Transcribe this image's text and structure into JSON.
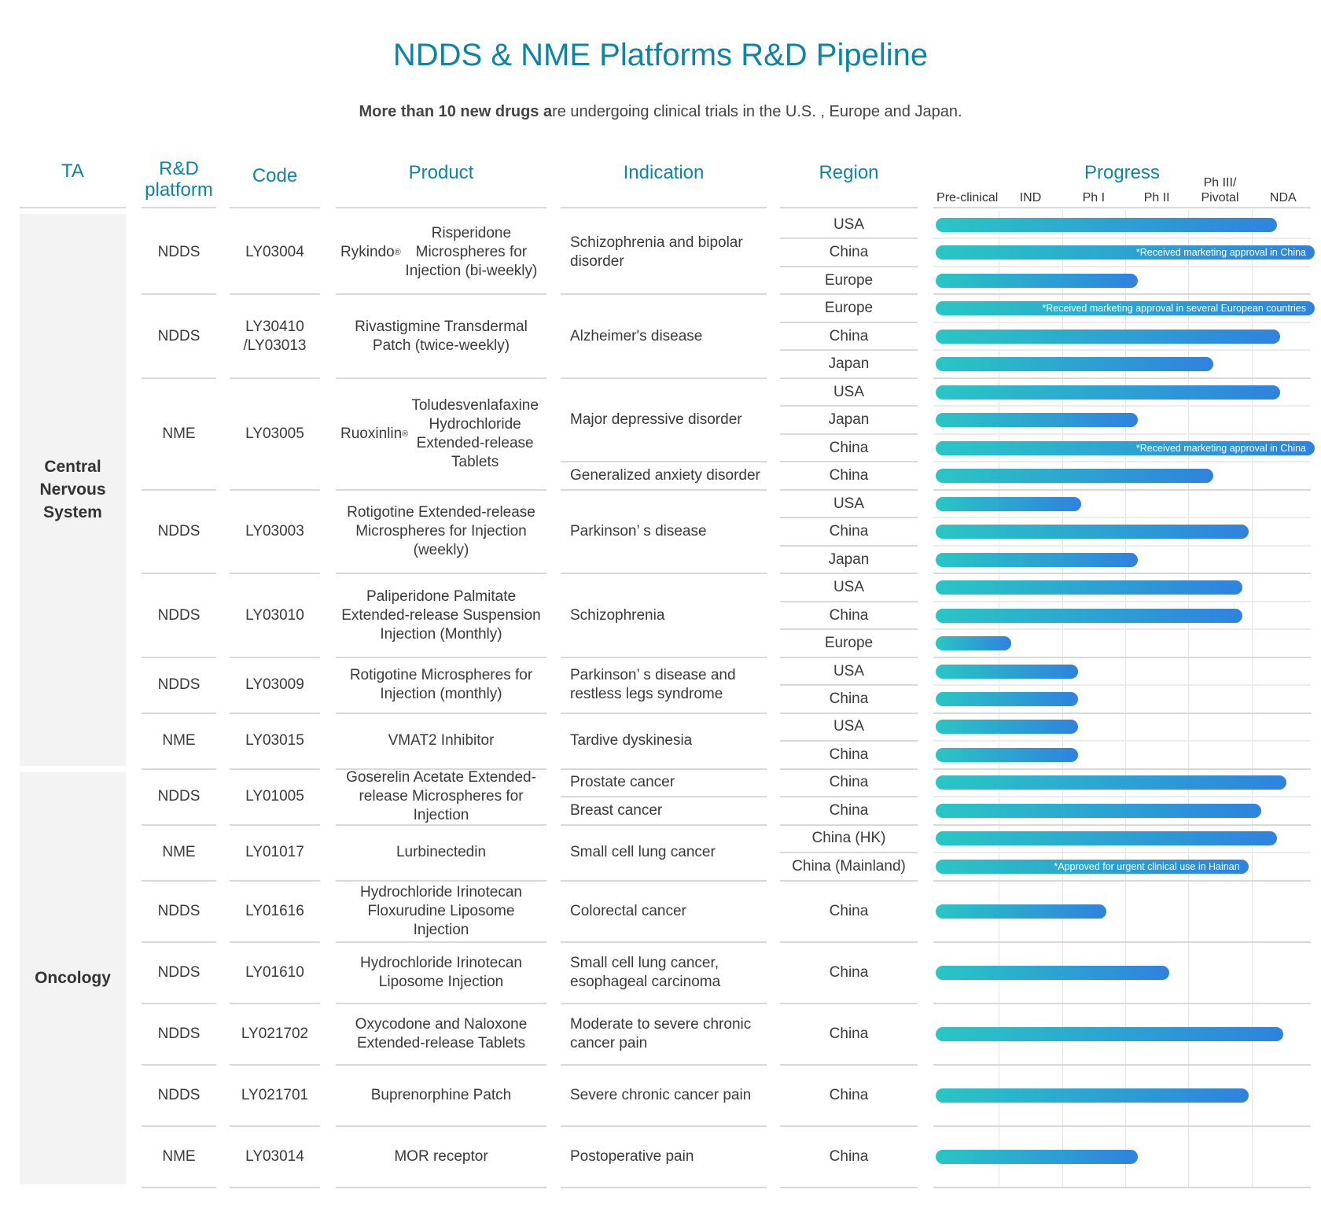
{
  "title": "NDDS & NME Platforms R&D Pipeline",
  "subtitle": {
    "bold": "More than 10 new drugs a",
    "rest": "re undergoing clinical trials in the U.S. , Europe and Japan."
  },
  "headers": {
    "ta": "TA",
    "platform": "R&D platform",
    "code": "Code",
    "product": "Product",
    "indication": "Indication",
    "region": "Region",
    "progress": "Progress"
  },
  "colors": {
    "accent": "#0f84a2",
    "bar_start": "#29c6c4",
    "bar_end": "#2f82de",
    "ta_bg": "#f3f3f3"
  },
  "chart_data": {
    "type": "bar",
    "orientation": "horizontal",
    "stages": [
      "Pre-clinical",
      "IND",
      "Ph I",
      "Ph II",
      "Ph III/ Pivotal",
      "NDA"
    ],
    "value_unit": "stage position (0 = start, 6 = end of NDA)",
    "therapeutic_areas": [
      {
        "name": "Central Nervous System",
        "first_product": 0,
        "last_product": 6
      },
      {
        "name": "Oncology",
        "first_product": 7,
        "last_product": 13
      }
    ],
    "products": [
      {
        "platform": "NDDS",
        "code": "LY03004",
        "product": "Rykindo® Risperidone Microspheres for Injection (bi-weekly)",
        "indications": [
          {
            "text": "Schizophrenia and bipolar disorder",
            "rows": 3
          }
        ],
        "rows": [
          {
            "region": "USA",
            "value": 5.4,
            "note": ""
          },
          {
            "region": "China",
            "value": 6.0,
            "note": "*Received marketing approval in China"
          },
          {
            "region": "Europe",
            "value": 3.2,
            "note": ""
          }
        ]
      },
      {
        "platform": "NDDS",
        "code": "LY30410 /LY03013",
        "product": "Rivastigmine Transdermal Patch (twice-weekly)",
        "indications": [
          {
            "text": "Alzheimer's disease",
            "rows": 3
          }
        ],
        "rows": [
          {
            "region": "Europe",
            "value": 6.0,
            "note": "*Received marketing approval in several European countries"
          },
          {
            "region": "China",
            "value": 5.45,
            "note": ""
          },
          {
            "region": "Japan",
            "value": 4.4,
            "note": ""
          }
        ]
      },
      {
        "platform": "NME",
        "code": "LY03005",
        "product": "Ruoxinlin® Toludesvenlafaxine Hydrochloride Extended-release Tablets",
        "indications": [
          {
            "text": "Major depressive disorder",
            "rows": 3
          },
          {
            "text": "Generalized anxiety disorder",
            "rows": 1
          }
        ],
        "rows": [
          {
            "region": "USA",
            "value": 5.45,
            "note": ""
          },
          {
            "region": "Japan",
            "value": 3.2,
            "note": ""
          },
          {
            "region": "China",
            "value": 6.0,
            "note": "*Received marketing approval in China"
          },
          {
            "region": "China",
            "value": 4.4,
            "note": ""
          }
        ]
      },
      {
        "platform": "NDDS",
        "code": "LY03003",
        "product": "Rotigotine Extended-release Microspheres for Injection (weekly)",
        "indications": [
          {
            "text": "Parkinson’ s disease",
            "rows": 3
          }
        ],
        "rows": [
          {
            "region": "USA",
            "value": 2.3,
            "note": ""
          },
          {
            "region": "China",
            "value": 4.95,
            "note": ""
          },
          {
            "region": "Japan",
            "value": 3.2,
            "note": ""
          }
        ]
      },
      {
        "platform": "NDDS",
        "code": "LY03010",
        "product": "Paliperidone Palmitate Extended-release Suspension Injection (Monthly)",
        "indications": [
          {
            "text": "Schizophrenia",
            "rows": 3
          }
        ],
        "rows": [
          {
            "region": "USA",
            "value": 4.85,
            "note": ""
          },
          {
            "region": "China",
            "value": 4.85,
            "note": ""
          },
          {
            "region": "Europe",
            "value": 1.2,
            "note": ""
          }
        ]
      },
      {
        "platform": "NDDS",
        "code": "LY03009",
        "product": "Rotigotine Microspheres for Injection (monthly)",
        "indications": [
          {
            "text": "Parkinson’ s disease and restless legs syndrome",
            "rows": 2
          }
        ],
        "rows": [
          {
            "region": "USA",
            "value": 2.25,
            "note": ""
          },
          {
            "region": "China",
            "value": 2.25,
            "note": ""
          }
        ]
      },
      {
        "platform": "NME",
        "code": "LY03015",
        "product": "VMAT2 Inhibitor",
        "indications": [
          {
            "text": "Tardive dyskinesia",
            "rows": 2
          }
        ],
        "rows": [
          {
            "region": "USA",
            "value": 2.25,
            "note": ""
          },
          {
            "region": "China",
            "value": 2.25,
            "note": ""
          }
        ]
      },
      {
        "platform": "NDDS",
        "code": "LY01005",
        "product": "Goserelin Acetate Extended-release Microspheres for Injection",
        "indications": [
          {
            "text": "Prostate cancer",
            "rows": 1
          },
          {
            "text": "Breast cancer",
            "rows": 1
          }
        ],
        "rows": [
          {
            "region": "China",
            "value": 5.55,
            "note": ""
          },
          {
            "region": "China",
            "value": 5.15,
            "note": ""
          }
        ]
      },
      {
        "platform": "NME",
        "code": "LY01017",
        "product": "Lurbinectedin",
        "indications": [
          {
            "text": "Small cell lung cancer",
            "rows": 2
          }
        ],
        "rows": [
          {
            "region": "China (HK)",
            "value": 5.4,
            "note": ""
          },
          {
            "region": "China (Mainland)",
            "value": 4.95,
            "note": "*Approved for urgent clinical use in Hainan"
          }
        ]
      },
      {
        "platform": "NDDS",
        "code": "LY01616",
        "product": "Hydrochloride Irinotecan Floxurudine Liposome Injection",
        "indications": [
          {
            "text": "Colorectal cancer",
            "rows": 1
          }
        ],
        "rows": [
          {
            "region": "China",
            "value": 2.7,
            "note": ""
          }
        ]
      },
      {
        "platform": "NDDS",
        "code": "LY01610",
        "product": "Hydrochloride Irinotecan Liposome Injection",
        "indications": [
          {
            "text": "Small cell lung cancer, esophageal carcinoma",
            "rows": 1
          }
        ],
        "rows": [
          {
            "region": "China",
            "value": 3.7,
            "note": ""
          }
        ]
      },
      {
        "platform": "NDDS",
        "code": "LY021702",
        "product": "Oxycodone and Naloxone Extended-release Tablets",
        "indications": [
          {
            "text": "Moderate to severe chronic cancer pain",
            "rows": 1
          }
        ],
        "rows": [
          {
            "region": "China",
            "value": 5.5,
            "note": ""
          }
        ]
      },
      {
        "platform": "NDDS",
        "code": "LY021701",
        "product": "Buprenorphine Patch",
        "indications": [
          {
            "text": "Severe chronic cancer pain",
            "rows": 1
          }
        ],
        "rows": [
          {
            "region": "China",
            "value": 4.95,
            "note": ""
          }
        ]
      },
      {
        "platform": "NME",
        "code": "LY03014",
        "product": "MOR receptor",
        "indications": [
          {
            "text": "Postoperative pain",
            "rows": 1
          }
        ],
        "rows": [
          {
            "region": "China",
            "value": 3.2,
            "note": ""
          }
        ]
      }
    ]
  }
}
